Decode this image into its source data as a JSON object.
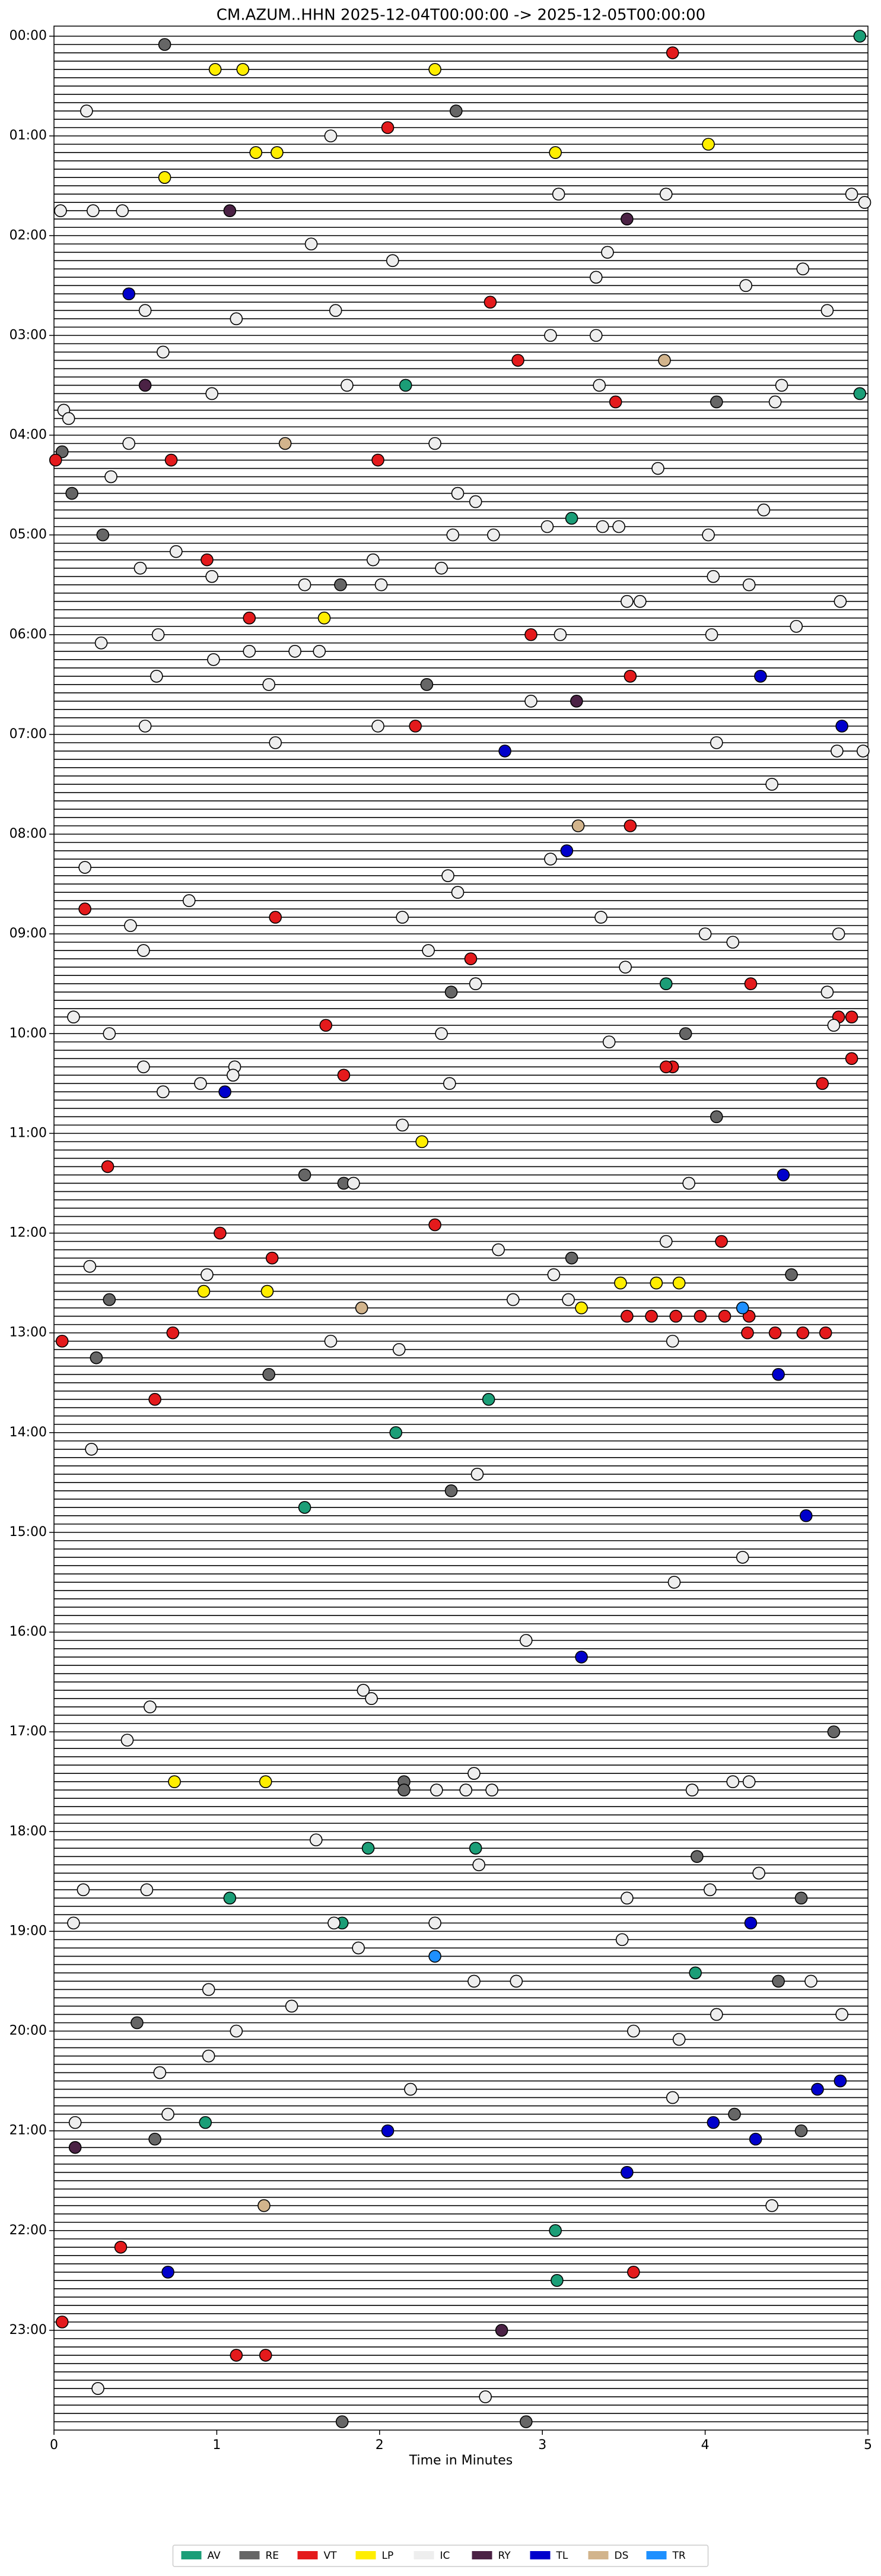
{
  "chart_data": {
    "type": "helicorder",
    "title": "CM.AZUM..HHN  2025-12-04T00:00:00 -> 2025-12-05T00:00:00",
    "xlabel": "Time in Minutes",
    "xlim": [
      0,
      5
    ],
    "xticks": [
      0,
      1,
      2,
      3,
      4,
      5
    ],
    "ylim": [
      0,
      1440
    ],
    "yticks": [
      {
        "value": 0,
        "label": "00:00"
      },
      {
        "value": 60,
        "label": "01:00"
      },
      {
        "value": 120,
        "label": "02:00"
      },
      {
        "value": 180,
        "label": "03:00"
      },
      {
        "value": 240,
        "label": "04:00"
      },
      {
        "value": 300,
        "label": "05:00"
      },
      {
        "value": 360,
        "label": "06:00"
      },
      {
        "value": 420,
        "label": "07:00"
      },
      {
        "value": 480,
        "label": "08:00"
      },
      {
        "value": 540,
        "label": "09:00"
      },
      {
        "value": 600,
        "label": "10:00"
      },
      {
        "value": 660,
        "label": "11:00"
      },
      {
        "value": 720,
        "label": "12:00"
      },
      {
        "value": 780,
        "label": "13:00"
      },
      {
        "value": 840,
        "label": "14:00"
      },
      {
        "value": 900,
        "label": "15:00"
      },
      {
        "value": 960,
        "label": "16:00"
      },
      {
        "value": 1020,
        "label": "17:00"
      },
      {
        "value": 1080,
        "label": "18:00"
      },
      {
        "value": 1140,
        "label": "19:00"
      },
      {
        "value": 1200,
        "label": "20:00"
      },
      {
        "value": 1260,
        "label": "21:00"
      },
      {
        "value": 1320,
        "label": "22:00"
      },
      {
        "value": 1380,
        "label": "23:00"
      }
    ],
    "legend": "lower center",
    "series": [
      {
        "name": "AV",
        "color": "#1b9e77",
        "x": [
          4.95,
          2.16,
          4.95,
          3.18,
          3.76,
          2.67,
          2.1,
          1.54,
          2.59,
          1.93,
          1.08,
          1.77,
          3.94,
          0.93,
          3.08,
          3.09
        ],
        "values": [
          0,
          210,
          215,
          290,
          570,
          820,
          840,
          885,
          1090,
          1090,
          1120,
          1135,
          1165,
          1255,
          1320,
          1350
        ]
      },
      {
        "name": "RE",
        "color": "#666666",
        "x": [
          0.68,
          2.47,
          4.07,
          0.05,
          0.11,
          0.3,
          1.76,
          2.29,
          2.44,
          3.88,
          4.07,
          1.54,
          1.78,
          3.18,
          4.53,
          0.34,
          0.26,
          1.32,
          2.44,
          4.79,
          2.15,
          2.15,
          3.95,
          4.59,
          4.45,
          0.51,
          4.18,
          0.62,
          4.59,
          1.77,
          2.9
        ],
        "values": [
          5,
          45,
          220,
          250,
          275,
          300,
          330,
          390,
          575,
          600,
          650,
          685,
          690,
          735,
          745,
          760,
          795,
          805,
          875,
          1020,
          1050,
          1055,
          1095,
          1120,
          1170,
          1195,
          1250,
          1265,
          1260,
          1435,
          1435
        ]
      },
      {
        "name": "VT",
        "color": "#e41a1c",
        "x": [
          3.8,
          2.05,
          2.68,
          2.85,
          3.45,
          0.01,
          0.72,
          1.99,
          0.94,
          1.2,
          2.93,
          3.54,
          2.22,
          3.54,
          0.19,
          1.36,
          2.56,
          4.28,
          1.67,
          4.82,
          4.9,
          4.9,
          3.8,
          3.76,
          1.78,
          4.72,
          0.33,
          2.34,
          1.02,
          4.1,
          1.34,
          3.52,
          3.67,
          3.82,
          3.97,
          4.12,
          4.27,
          4.26,
          4.43,
          4.6,
          4.74,
          0.73,
          0.05,
          0.62,
          0.41,
          3.56,
          0.05,
          1.12,
          1.3
        ],
        "values": [
          10,
          55,
          160,
          195,
          220,
          255,
          255,
          255,
          315,
          350,
          360,
          385,
          415,
          475,
          525,
          530,
          555,
          570,
          595,
          590,
          590,
          615,
          620,
          620,
          625,
          630,
          680,
          715,
          720,
          725,
          735,
          770,
          770,
          770,
          770,
          770,
          770,
          780,
          780,
          780,
          780,
          780,
          785,
          820,
          1330,
          1345,
          1375,
          1395,
          1395
        ]
      },
      {
        "name": "LP",
        "color": "#ffee00",
        "x": [
          1.16,
          0.99,
          2.34,
          1.24,
          1.37,
          3.08,
          4.02,
          0.68,
          1.66,
          2.26,
          3.48,
          3.7,
          3.84,
          0.92,
          1.31,
          3.24,
          0.74,
          1.3
        ],
        "values": [
          20,
          20,
          20,
          70,
          70,
          70,
          65,
          85,
          350,
          665,
          750,
          750,
          750,
          755,
          755,
          765,
          1050,
          1050
        ]
      },
      {
        "name": "IC",
        "color": "#eeeeee",
        "x": [
          0.2,
          1.7,
          3.1,
          3.76,
          4.9,
          4.98,
          0.04,
          0.24,
          0.42,
          1.58,
          3.4,
          2.08,
          4.6,
          3.33,
          4.25,
          0.56,
          1.73,
          4.75,
          1.12,
          3.05,
          3.33,
          0.67,
          1.8,
          3.35,
          4.47,
          0.97,
          4.43,
          0.06,
          0.09,
          0.46,
          2.34,
          3.71,
          0.35,
          2.48,
          2.59,
          4.36,
          3.03,
          3.37,
          3.47,
          2.45,
          2.7,
          4.02,
          0.75,
          1.96,
          0.53,
          0.97,
          2.38,
          4.05,
          1.54,
          2.01,
          4.27,
          3.52,
          3.6,
          4.83,
          3.11,
          0.64,
          4.04,
          4.56,
          0.29,
          1.48,
          1.2,
          1.63,
          0.98,
          0.63,
          1.32,
          2.93,
          0.56,
          1.99,
          1.36,
          4.07,
          4.81,
          4.97,
          4.41,
          3.05,
          0.19,
          2.42,
          2.48,
          0.83,
          2.14,
          3.36,
          0.47,
          4.0,
          4.17,
          4.82,
          2.3,
          0.55,
          3.51,
          2.59,
          4.75,
          0.12,
          0.34,
          4.79,
          2.38,
          3.41,
          0.55,
          1.11,
          1.1,
          0.9,
          0.67,
          2.43,
          2.14,
          1.84,
          3.9,
          3.76,
          2.73,
          0.22,
          0.94,
          3.07,
          2.82,
          3.16,
          1.7,
          3.8,
          2.12,
          0.23,
          2.6,
          4.23,
          3.81,
          2.9,
          1.9,
          1.95,
          0.59,
          0.45,
          2.58,
          2.35,
          2.53,
          2.69,
          3.92,
          4.17,
          4.27,
          1.61,
          2.61,
          4.33,
          0.18,
          0.57,
          3.52,
          4.03,
          0.12,
          1.72,
          2.34,
          3.49,
          1.87,
          2.58,
          2.84,
          4.65,
          4.84,
          1.46,
          0.95,
          4.07,
          1.12,
          3.56,
          3.84,
          0.95,
          0.65,
          2.19,
          3.8,
          0.13,
          0.7,
          4.41,
          0.27,
          2.65
        ],
        "values": [
          45,
          60,
          95,
          95,
          95,
          100,
          105,
          105,
          105,
          125,
          130,
          135,
          140,
          145,
          150,
          165,
          165,
          165,
          170,
          180,
          180,
          190,
          210,
          210,
          210,
          215,
          220,
          225,
          230,
          245,
          245,
          260,
          265,
          275,
          280,
          285,
          295,
          295,
          295,
          300,
          300,
          300,
          310,
          315,
          320,
          325,
          320,
          325,
          330,
          330,
          330,
          340,
          340,
          340,
          360,
          360,
          360,
          355,
          365,
          370,
          370,
          370,
          375,
          385,
          390,
          400,
          415,
          415,
          425,
          425,
          430,
          430,
          450,
          495,
          500,
          505,
          515,
          520,
          530,
          530,
          535,
          540,
          545,
          540,
          550,
          550,
          560,
          570,
          575,
          590,
          600,
          595,
          600,
          605,
          620,
          620,
          625,
          630,
          635,
          630,
          655,
          690,
          690,
          725,
          730,
          740,
          745,
          745,
          760,
          760,
          785,
          785,
          790,
          850,
          865,
          915,
          930,
          965,
          995,
          1000,
          1005,
          1025,
          1045,
          1055,
          1055,
          1055,
          1055,
          1050,
          1050,
          1085,
          1100,
          1105,
          1115,
          1115,
          1120,
          1115,
          1135,
          1135,
          1135,
          1145,
          1150,
          1170,
          1170,
          1170,
          1190,
          1185,
          1175,
          1190,
          1200,
          1200,
          1205,
          1215,
          1225,
          1235,
          1240,
          1255,
          1250,
          1305,
          1415,
          1420
        ]
      },
      {
        "name": "RY",
        "color": "#4b2245",
        "x": [
          1.08,
          3.52,
          0.56,
          3.21,
          0.13,
          2.75
        ],
        "values": [
          105,
          110,
          210,
          400,
          1270,
          1380
        ]
      },
      {
        "name": "TL",
        "color": "#0000cc",
        "x": [
          0.46,
          4.34,
          4.84,
          2.77,
          3.15,
          1.05,
          4.48,
          4.45,
          4.62,
          3.24,
          4.28,
          4.83,
          4.69,
          2.05,
          4.05,
          4.31,
          3.52,
          0.7
        ],
        "values": [
          155,
          385,
          415,
          430,
          490,
          635,
          685,
          805,
          890,
          975,
          1135,
          1230,
          1235,
          1260,
          1255,
          1265,
          1285,
          1345
        ]
      },
      {
        "name": "DS",
        "color": "#d2b48c",
        "x": [
          3.75,
          1.42,
          3.22,
          1.89,
          1.29
        ],
        "values": [
          195,
          245,
          475,
          765,
          1305
        ]
      },
      {
        "name": "TR",
        "color": "#1e90ff",
        "x": [
          4.23,
          2.34
        ],
        "values": [
          765,
          1155
        ]
      }
    ]
  }
}
